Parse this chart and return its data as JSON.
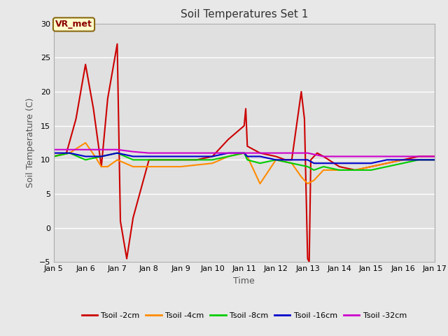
{
  "title": "Soil Temperatures Set 1",
  "xlabel": "Time",
  "ylabel": "Soil Temperature (C)",
  "annotation_text": "VR_met",
  "ylim": [
    -5,
    30
  ],
  "xlim": [
    5,
    17
  ],
  "fig_bg_color": "#e8e8e8",
  "plot_bg_color": "#e0e0e0",
  "grid_color": "white",
  "x_ticks": [
    5,
    6,
    7,
    8,
    9,
    10,
    11,
    12,
    13,
    14,
    15,
    16,
    17
  ],
  "x_tick_labels": [
    "Jan 5",
    "Jan 6",
    "Jan 7",
    "Jan 8",
    "Jan 9",
    "Jan 10",
    "Jan 11",
    "Jan 12",
    "Jan 13",
    "Jan 14",
    "Jan 15",
    "Jan 16",
    "Jan 17"
  ],
  "y_ticks": [
    -5,
    0,
    5,
    10,
    15,
    20,
    25,
    30
  ],
  "series": {
    "Tsoil -2cm": {
      "color": "#cc0000",
      "x": [
        5,
        5.4,
        5.7,
        6.0,
        6.25,
        6.5,
        6.7,
        7.0,
        7.1,
        7.3,
        7.5,
        8,
        8.5,
        9,
        9.5,
        10,
        10.5,
        11.0,
        11.05,
        11.1,
        11.5,
        12,
        12.3,
        12.5,
        12.8,
        12.9,
        13.0,
        13.05,
        13.1,
        13.3,
        13.5,
        14,
        14.5,
        15,
        15.5,
        16,
        16.5,
        17
      ],
      "y": [
        10.5,
        11,
        16,
        24,
        17.5,
        9,
        19,
        27,
        1.0,
        -4.5,
        1.5,
        10,
        10,
        10,
        10,
        10.5,
        13,
        15,
        17.5,
        12,
        11,
        10.5,
        10,
        10,
        20.0,
        16,
        -4.5,
        -5.0,
        10,
        11,
        10.5,
        9,
        8.5,
        9,
        9.5,
        10,
        10.5,
        10.5
      ]
    },
    "Tsoil -4cm": {
      "color": "#ff8c00",
      "x": [
        5,
        5.5,
        6,
        6.3,
        6.5,
        6.7,
        7.0,
        7.5,
        8,
        9,
        10,
        10.5,
        11,
        11.1,
        11.5,
        12,
        12.5,
        12.8,
        13.0,
        13.2,
        13.5,
        14,
        14.5,
        15,
        15.5,
        16,
        16.5,
        17
      ],
      "y": [
        10.5,
        11,
        12.5,
        10.5,
        9,
        9,
        10,
        9,
        9,
        9,
        9.5,
        10.5,
        11,
        10.5,
        6.5,
        10,
        9.5,
        7.5,
        6.5,
        7.0,
        8.5,
        8.5,
        8.5,
        9,
        9.5,
        10,
        10,
        10
      ]
    },
    "Tsoil -8cm": {
      "color": "#00cc00",
      "x": [
        5,
        5.5,
        6,
        6.5,
        7.0,
        7.5,
        8,
        9,
        10,
        10.5,
        11,
        11.1,
        11.5,
        12,
        12.5,
        13.0,
        13.2,
        13.5,
        14,
        14.5,
        15,
        15.5,
        16,
        16.5,
        17
      ],
      "y": [
        10.5,
        11,
        10,
        10.5,
        11,
        10,
        10,
        10,
        10,
        10.5,
        11,
        10,
        9.5,
        10,
        9.5,
        9.0,
        8.5,
        9.0,
        8.5,
        8.5,
        8.5,
        9,
        9.5,
        10,
        10
      ]
    },
    "Tsoil -16cm": {
      "color": "#0000cc",
      "x": [
        5,
        5.5,
        6,
        6.5,
        7.0,
        7.5,
        8,
        9,
        10,
        10.5,
        11,
        11.1,
        11.5,
        12,
        12.5,
        13.0,
        13.2,
        13.5,
        14,
        14.5,
        15,
        15.5,
        16,
        16.5,
        17
      ],
      "y": [
        11,
        11,
        10.5,
        10.5,
        11,
        10.5,
        10.5,
        10.5,
        10.5,
        11,
        11,
        10.5,
        10.5,
        10,
        10,
        10,
        9.5,
        9.5,
        9.5,
        9.5,
        9.5,
        10,
        10,
        10,
        10
      ]
    },
    "Tsoil -32cm": {
      "color": "#cc00cc",
      "x": [
        5,
        5.5,
        6,
        6.5,
        7.0,
        7.5,
        8,
        9,
        10,
        10.5,
        11,
        11.5,
        12,
        12.5,
        13.0,
        13.5,
        14,
        14.5,
        15,
        15.5,
        16,
        16.5,
        17
      ],
      "y": [
        11.5,
        11.5,
        11.5,
        11.5,
        11.5,
        11.2,
        11,
        11,
        11,
        11,
        11,
        11,
        11,
        11,
        11,
        10.5,
        10.5,
        10.5,
        10.5,
        10.5,
        10.5,
        10.5,
        10.5
      ]
    }
  },
  "legend_labels": [
    "Tsoil -2cm",
    "Tsoil -4cm",
    "Tsoil -8cm",
    "Tsoil -16cm",
    "Tsoil -32cm"
  ],
  "legend_colors": [
    "#cc0000",
    "#ff8c00",
    "#00cc00",
    "#0000cc",
    "#cc00cc"
  ]
}
